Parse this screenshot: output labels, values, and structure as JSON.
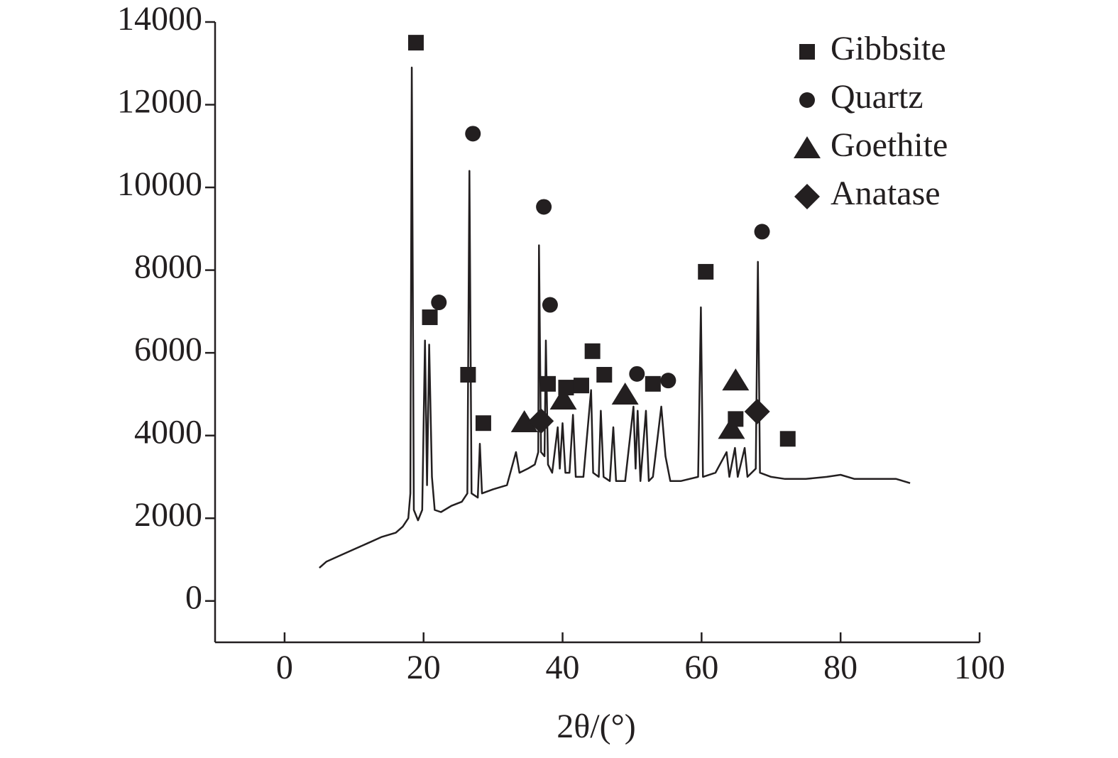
{
  "chart_data": {
    "type": "line",
    "x_label": "2θ/(°)",
    "xlim": [
      -10,
      100
    ],
    "xticks": [
      0,
      20,
      40,
      60,
      80,
      100
    ],
    "ylim": [
      -1000,
      14000
    ],
    "yticks": [
      0,
      2000,
      4000,
      6000,
      8000,
      10000,
      12000,
      14000
    ],
    "legend": "upper right",
    "series": [
      {
        "marker": "line",
        "color": "#231f20",
        "x": [
          5,
          6,
          8,
          10,
          12,
          14,
          16,
          17,
          17.8,
          18.1,
          18.3,
          18.6,
          19.2,
          19.8,
          20.2,
          20.5,
          20.8,
          21.2,
          21.6,
          22.5,
          24,
          25.5,
          26.3,
          26.6,
          26.9,
          27.8,
          28.1,
          28.4,
          30,
          32,
          33.3,
          33.8,
          35,
          36,
          36.5,
          36.6,
          36.9,
          37.4,
          37.6,
          37.9,
          38.5,
          39.3,
          39.6,
          40,
          40.4,
          41,
          41.5,
          41.9,
          43,
          44.1,
          44.4,
          45.2,
          45.5,
          45.9,
          46.8,
          47.3,
          47.7,
          49,
          50.2,
          50.5,
          50.8,
          51.2,
          52,
          52.4,
          53,
          54.2,
          54.8,
          55.5,
          57,
          59.5,
          59.9,
          60.2,
          62,
          63.6,
          64,
          64.8,
          65.2,
          66.2,
          66.6,
          67.8,
          68.1,
          68.4,
          70,
          72,
          75,
          78,
          80,
          82,
          85,
          88,
          90
        ],
        "values": [
          800,
          950,
          1100,
          1250,
          1400,
          1550,
          1650,
          1800,
          2000,
          2600,
          12900,
          2200,
          1950,
          2200,
          6300,
          2800,
          6200,
          3000,
          2200,
          2150,
          2300,
          2400,
          2600,
          10400,
          2600,
          2500,
          3800,
          2600,
          2700,
          2800,
          3600,
          3100,
          3200,
          3300,
          3600,
          8600,
          3600,
          3500,
          6300,
          3300,
          3100,
          4200,
          3200,
          4300,
          3100,
          3100,
          4500,
          3000,
          3000,
          5100,
          3100,
          3000,
          4600,
          3000,
          2900,
          4200,
          2900,
          2900,
          4700,
          3200,
          4600,
          2900,
          4600,
          2900,
          3000,
          4700,
          3500,
          2900,
          2900,
          3000,
          7100,
          3000,
          3100,
          3600,
          3000,
          3700,
          3000,
          3700,
          3000,
          3200,
          8200,
          3100,
          3000,
          2950,
          2950,
          3000,
          3050,
          2950,
          2950,
          2950,
          2850
        ]
      },
      {
        "name": "Gibbsite",
        "marker": "square",
        "color": "#231f20",
        "x": [
          18.9,
          20.9,
          26.4,
          28.6,
          37.9,
          40.5,
          42.7,
          44.3,
          46.0,
          53.0,
          60.6,
          64.9,
          72.4
        ],
        "values": [
          13500,
          6860,
          5470,
          4300,
          5250,
          5160,
          5210,
          6040,
          5470,
          5250,
          7960,
          4400,
          3920
        ]
      },
      {
        "name": "Quartz",
        "marker": "circle",
        "color": "#231f20",
        "x": [
          22.2,
          27.1,
          37.3,
          38.2,
          50.7,
          55.2,
          68.7
        ],
        "values": [
          7220,
          11300,
          9530,
          7160,
          5490,
          5330,
          8930
        ]
      },
      {
        "name": "Goethite",
        "marker": "triangle",
        "color": "#231f20",
        "x": [
          34.5,
          40.1,
          49.0,
          64.3,
          64.9
        ],
        "values": [
          4320,
          4870,
          4990,
          4160,
          5330
        ]
      },
      {
        "name": "Anatase",
        "marker": "diamond",
        "color": "#231f20",
        "x": [
          36.9,
          68.0
        ],
        "values": [
          4350,
          4580
        ]
      }
    ]
  }
}
